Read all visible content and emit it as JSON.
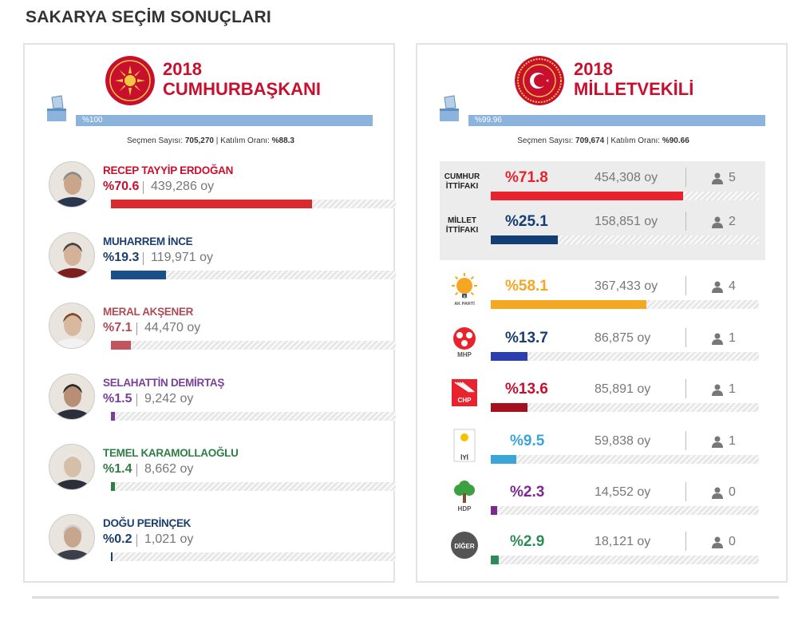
{
  "page": {
    "title": "SAKARYA SEÇİM SONUÇLARI"
  },
  "colors": {
    "accent_red": "#c8102e",
    "count_bar": "#8cb3dc"
  },
  "presidential": {
    "year": "2018",
    "title": "CUMHURBAŞKANI",
    "count_label": "%100",
    "voters_label": "Seçmen Sayısı:",
    "voters_value": "705,270",
    "turnout_label": "Katılım Oranı:",
    "turnout_value": "%88.3"
  },
  "parliament": {
    "year": "2018",
    "title": "MİLLETVEKİLİ",
    "count_label": "%99.96",
    "voters_label": "Seçmen Sayısı:",
    "voters_value": "709,674",
    "turnout_label": "Katılım Oranı:",
    "turnout_value": "%90.66"
  },
  "chart_data": [
    {
      "type": "bar",
      "title": "2018 CUMHURBAŞKANI",
      "candidates": [
        {
          "name": "RECEP TAYYİP ERDOĞAN",
          "pct_label": "%70.6",
          "votes_label": "439,286 oy",
          "pct": 70.6,
          "votes": 439286,
          "color": "#d82a2f",
          "pct_color": "#c8102e"
        },
        {
          "name": "MUHARREM İNCE",
          "pct_label": "%19.3",
          "votes_label": "119,971 oy",
          "pct": 19.3,
          "votes": 119971,
          "color": "#1a4f8a",
          "pct_color": "#1a3f6e"
        },
        {
          "name": "MERAL AKŞENER",
          "pct_label": "%7.1",
          "votes_label": "44,470 oy",
          "pct": 7.1,
          "votes": 44470,
          "color": "#c0555d",
          "pct_color": "#b04a53"
        },
        {
          "name": "SELAHATTİN DEMİRTAŞ",
          "pct_label": "%1.5",
          "votes_label": "9,242 oy",
          "pct": 1.5,
          "votes": 9242,
          "color": "#7a3f98",
          "pct_color": "#7a3f98"
        },
        {
          "name": "TEMEL KARAMOLLAOĞLU",
          "pct_label": "%1.4",
          "votes_label": "8,662 oy",
          "pct": 1.4,
          "votes": 8662,
          "color": "#2f7d46",
          "pct_color": "#2f7d46"
        },
        {
          "name": "DOĞU PERİNÇEK",
          "pct_label": "%0.2",
          "votes_label": "1,021 oy",
          "pct": 0.2,
          "votes": 1021,
          "color": "#1a3f6e",
          "pct_color": "#1a3f6e"
        }
      ]
    },
    {
      "type": "bar",
      "title": "2018 MİLLETVEKİLİ",
      "alliances": [
        {
          "name_line1": "CUMHUR",
          "name_line2": "İTTİFAKI",
          "pct_label": "%71.8",
          "votes_label": "454,308 oy",
          "seats": "5",
          "pct": 71.8,
          "votes": 454308,
          "color": "#e8232d",
          "pct_color": "#e8232d"
        },
        {
          "name_line1": "MİLLET",
          "name_line2": "İTTİFAKI",
          "pct_label": "%25.1",
          "votes_label": "158,851 oy",
          "seats": "2",
          "pct": 25.1,
          "votes": 158851,
          "color": "#123e74",
          "pct_color": "#123e74"
        }
      ],
      "parties": [
        {
          "logo": "akp-logo",
          "logo_text": "AK PARTİ",
          "pct_label": "%58.1",
          "votes_label": "367,433 oy",
          "seats": "4",
          "pct": 58.1,
          "votes": 367433,
          "color": "#f5a623",
          "pct_color": "#f5a623"
        },
        {
          "logo": "mhp-logo",
          "logo_text": "MHP",
          "pct_label": "%13.7",
          "votes_label": "86,875 oy",
          "seats": "1",
          "pct": 13.7,
          "votes": 86875,
          "color": "#2b3fb0",
          "pct_color": "#1a3f6e"
        },
        {
          "logo": "chp-logo",
          "logo_text": "CHP",
          "pct_label": "%13.6",
          "votes_label": "85,891 oy",
          "seats": "1",
          "pct": 13.6,
          "votes": 85891,
          "color": "#a5101e",
          "pct_color": "#c8102e"
        },
        {
          "logo": "iyi-logo",
          "logo_text": "İYİ",
          "pct_label": "%9.5",
          "votes_label": "59,838 oy",
          "seats": "1",
          "pct": 9.5,
          "votes": 59838,
          "color": "#3ba5d8",
          "pct_color": "#3ba5d8"
        },
        {
          "logo": "hdp-logo",
          "logo_text": "HDP",
          "pct_label": "%2.3",
          "votes_label": "14,552 oy",
          "seats": "0",
          "pct": 2.3,
          "votes": 14552,
          "color": "#7b2a8f",
          "pct_color": "#7b2a8f"
        },
        {
          "logo": "other-logo",
          "logo_text": "DİĞER",
          "pct_label": "%2.9",
          "votes_label": "18,121 oy",
          "seats": "0",
          "pct": 2.9,
          "votes": 18121,
          "color": "#2e8b57",
          "pct_color": "#2e8b57"
        }
      ]
    }
  ]
}
